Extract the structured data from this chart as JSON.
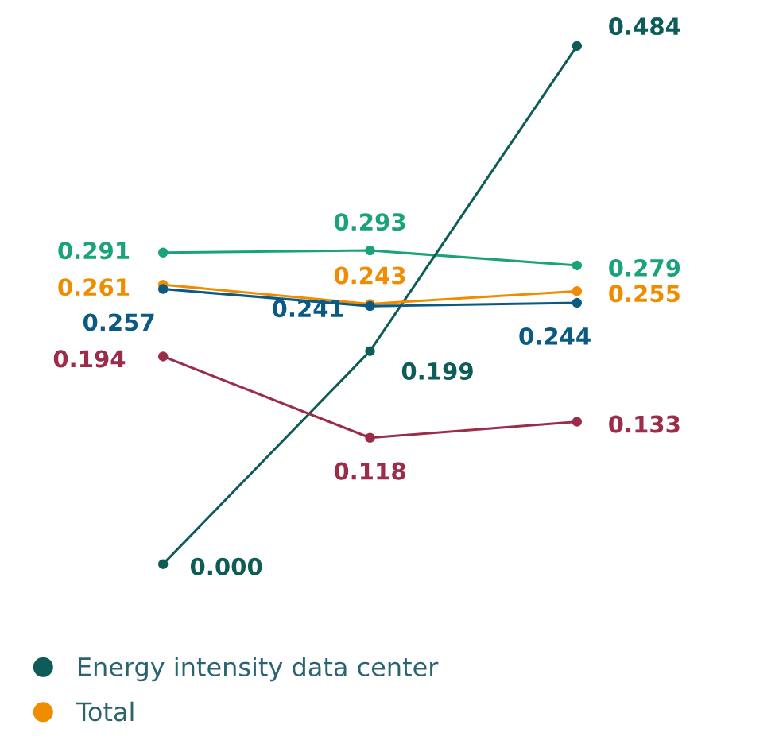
{
  "chart_data": {
    "type": "line",
    "categories": [
      null,
      null,
      null
    ],
    "legend": "bottom",
    "marker": "circle",
    "line_style": "solid",
    "series": [
      {
        "color": "#1aa37a",
        "values": [
          0.291,
          0.293,
          0.279
        ],
        "value_labels": [
          "0.291",
          "0.293",
          "0.279"
        ]
      },
      {
        "name": "Energy intensity data center",
        "color": "#0d5c57",
        "values": [
          0.0,
          0.199,
          0.484
        ],
        "value_labels": [
          "0.000",
          "0.199",
          "0.484"
        ]
      },
      {
        "name": "Total",
        "color": "#f08c00",
        "values": [
          0.261,
          0.243,
          0.255
        ],
        "value_labels": [
          "0.261",
          "0.243",
          "0.255"
        ]
      },
      {
        "color": "#0b5a84",
        "values": [
          0.257,
          0.241,
          0.244
        ],
        "value_labels": [
          "0.257",
          "0.241",
          "0.244"
        ]
      },
      {
        "color": "#9b2c4a",
        "values": [
          0.194,
          0.118,
          0.133
        ],
        "value_labels": [
          "0.194",
          "0.118",
          "0.133"
        ]
      }
    ]
  }
}
